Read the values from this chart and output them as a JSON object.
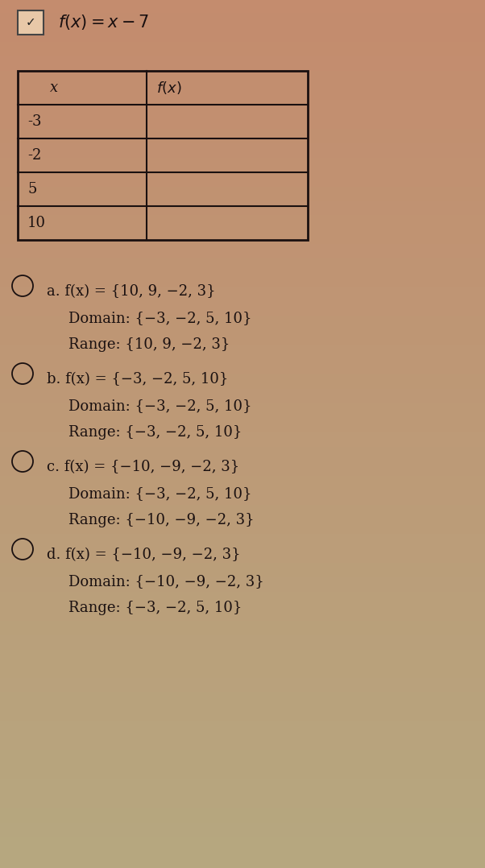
{
  "bg_color_top": "#c8957a",
  "bg_color_bottom": "#c4a882",
  "options_bg": "#c8b89a",
  "title_formula": "f(x) = x - 7",
  "table": {
    "headers": [
      "x",
      "f(x)"
    ],
    "rows": [
      [
        "-3",
        ""
      ],
      [
        "-2",
        ""
      ],
      [
        "5",
        ""
      ],
      [
        "10",
        ""
      ]
    ]
  },
  "options": [
    {
      "label": "a",
      "fx_line": "f(x) = {10, 9, −2, 3}",
      "domain_line": "Domain: {−3, −2, 5, 10}",
      "range_line": "Range: {10, 9, −2, 3}"
    },
    {
      "label": "b",
      "fx_line": "f(x) = {−3, −2, 5, 10}",
      "domain_line": "Domain: {−3, −2, 5, 10}",
      "range_line": "Range: {−3, −2, 5, 10}"
    },
    {
      "label": "c",
      "fx_line": "f(x) = {−10, −9, −2, 3}",
      "domain_line": "Domain: {−3, −2, 5, 10}",
      "range_line": "Range: {−10, −9, −2, 3}"
    },
    {
      "label": "d",
      "fx_line": "f(x) = {−10, −9, −2, 3}",
      "domain_line": "Domain: {−10, −9, −2, 3}",
      "range_line": "Range: {−3, −2, 5, 10}"
    }
  ],
  "font_size_title": 15,
  "font_size_table_header": 13,
  "font_size_table_data": 13,
  "font_size_options": 13,
  "text_color": "#1a1010",
  "table_border_color": "#1a1010"
}
